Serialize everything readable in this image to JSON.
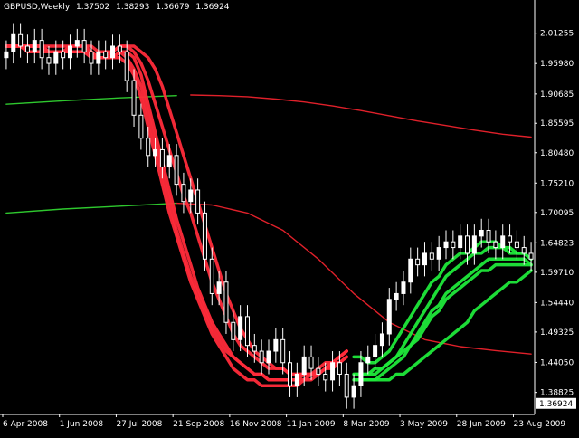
{
  "window": {
    "symbol_timeframe": "GBPUSD,Weekly",
    "ohlc": [
      "1.37502",
      "1.38293",
      "1.36679",
      "1.36924"
    ]
  },
  "colors": {
    "background": "#000000",
    "bull_candle": "#ffffff",
    "bear_candle": "#ffffff",
    "ribbon_down": "#ff2b3a",
    "ribbon_up": "#1fe83a",
    "ma_red": "#e0202a",
    "ma_green": "#2ec82e",
    "axis": "#ffffff",
    "price_marker": "#ffffff"
  },
  "chart_data": {
    "type": "line",
    "y_scale": "price",
    "ylim": [
      1.35,
      2.045
    ],
    "y_ticks": [
      "2.01255",
      "1.95980",
      "1.90685",
      "1.85595",
      "1.80480",
      "1.75210",
      "1.70095",
      "1.64823",
      "1.59710",
      "1.54440",
      "1.49325",
      "1.44050",
      "1.38825"
    ],
    "y_tick_values": [
      2.01255,
      1.9598,
      1.90685,
      1.85595,
      1.8048,
      1.7521,
      1.70095,
      1.64823,
      1.5971,
      1.5444,
      1.49325,
      1.4405,
      1.38825
    ],
    "current_price_label": "1.36924",
    "current_price": 1.36924,
    "x_ticks": [
      "6 Apr 2008",
      "1 Jun 2008",
      "27 Jul 2008",
      "21 Sep 2008",
      "16 Nov 2008",
      "11 Jan 2009",
      "8 Mar 2009",
      "3 May 2009",
      "28 Jun 2009",
      "23 Aug 2009"
    ],
    "x_tick_index": [
      0,
      8,
      16,
      24,
      32,
      40,
      48,
      56,
      64,
      72
    ],
    "candles_close": [
      1.98,
      2.01,
      1.99,
      1.98,
      2.0,
      1.97,
      1.96,
      1.98,
      1.97,
      1.99,
      2.0,
      1.98,
      1.96,
      1.98,
      1.97,
      1.99,
      1.98,
      1.93,
      1.87,
      1.83,
      1.8,
      1.81,
      1.78,
      1.8,
      1.75,
      1.72,
      1.74,
      1.7,
      1.62,
      1.56,
      1.58,
      1.51,
      1.48,
      1.52,
      1.47,
      1.46,
      1.44,
      1.46,
      1.48,
      1.44,
      1.4,
      1.42,
      1.45,
      1.43,
      1.42,
      1.41,
      1.44,
      1.42,
      1.38,
      1.4,
      1.44,
      1.45,
      1.47,
      1.49,
      1.55,
      1.56,
      1.58,
      1.62,
      1.61,
      1.63,
      1.62,
      1.64,
      1.65,
      1.64,
      1.66,
      1.63,
      1.66,
      1.67,
      1.65,
      1.64,
      1.66,
      1.65,
      1.64,
      1.63,
      1.62
    ],
    "series": [
      {
        "kind": "ribbon_red",
        "values": [
          1.99,
          1.99,
          1.99,
          1.99,
          1.99,
          1.99,
          1.98,
          1.98,
          1.98,
          1.99,
          1.99,
          1.99,
          1.98,
          1.97,
          1.97,
          1.98,
          1.99,
          1.99,
          1.98,
          1.96,
          1.93,
          1.89,
          1.85,
          1.81,
          1.77,
          1.73,
          1.7,
          1.66,
          1.62,
          1.58,
          1.55,
          1.52,
          1.49,
          1.47,
          1.46,
          1.45,
          1.44,
          1.43,
          1.43,
          1.43,
          1.42,
          1.42,
          1.42,
          1.42,
          1.42,
          1.43,
          1.44,
          1.44,
          1.45
        ]
      },
      {
        "kind": "ribbon_red",
        "values": [
          1.99,
          1.99,
          1.99,
          1.99,
          1.99,
          1.99,
          1.98,
          1.98,
          1.98,
          1.98,
          1.98,
          1.98,
          1.97,
          1.97,
          1.97,
          1.97,
          1.98,
          1.98,
          1.97,
          1.94,
          1.89,
          1.84,
          1.79,
          1.74,
          1.69,
          1.65,
          1.61,
          1.57,
          1.54,
          1.51,
          1.49,
          1.47,
          1.45,
          1.44,
          1.43,
          1.42,
          1.42,
          1.41,
          1.41,
          1.41,
          1.41,
          1.41,
          1.41,
          1.42,
          1.42,
          1.43,
          1.44,
          1.45,
          1.46
        ]
      },
      {
        "kind": "ribbon_red",
        "values": [
          1.99,
          1.99,
          1.99,
          1.98,
          1.98,
          1.98,
          1.98,
          1.98,
          1.98,
          1.98,
          1.98,
          1.98,
          1.97,
          1.97,
          1.97,
          1.97,
          1.97,
          1.96,
          1.94,
          1.9,
          1.85,
          1.8,
          1.75,
          1.7,
          1.66,
          1.62,
          1.58,
          1.55,
          1.52,
          1.49,
          1.47,
          1.45,
          1.43,
          1.42,
          1.41,
          1.41,
          1.4,
          1.4,
          1.4,
          1.4,
          1.4,
          1.4,
          1.41,
          1.41,
          1.42,
          1.43,
          1.44,
          1.45,
          1.46
        ]
      },
      {
        "kind": "ribbon_red",
        "values": [
          1.99,
          1.99,
          1.99,
          1.99,
          1.99,
          1.99,
          1.99,
          1.99,
          1.99,
          1.99,
          1.99,
          1.99,
          1.99,
          1.98,
          1.98,
          1.98,
          1.99,
          1.99,
          1.99,
          1.98,
          1.97,
          1.95,
          1.92,
          1.88,
          1.84,
          1.8,
          1.76,
          1.72,
          1.68,
          1.64,
          1.6,
          1.56,
          1.53,
          1.5,
          1.48,
          1.46,
          1.45,
          1.44,
          1.43,
          1.43,
          1.42,
          1.42,
          1.42,
          1.42,
          1.42,
          1.43,
          1.43,
          1.44,
          1.45
        ]
      },
      {
        "kind": "ribbon_red",
        "values": [
          1.99,
          1.99,
          1.99,
          1.99,
          1.99,
          1.99,
          1.98,
          1.98,
          1.98,
          1.98,
          1.98,
          1.98,
          1.98,
          1.97,
          1.97,
          1.97,
          1.98,
          1.97,
          1.95,
          1.92,
          1.87,
          1.82,
          1.77,
          1.72,
          1.67,
          1.63,
          1.59,
          1.56,
          1.53,
          1.5,
          1.48,
          1.46,
          1.45,
          1.44,
          1.43,
          1.42,
          1.42,
          1.41,
          1.41,
          1.41,
          1.41,
          1.41,
          1.42,
          1.42,
          1.43,
          1.44,
          1.44,
          1.45,
          1.46
        ]
      },
      {
        "kind": "ribbon_green",
        "values": [
          1.45,
          1.45,
          1.44,
          1.44,
          1.45,
          1.46,
          1.48,
          1.5,
          1.52,
          1.54,
          1.56,
          1.58,
          1.59,
          1.61,
          1.62,
          1.63,
          1.63,
          1.64,
          1.65,
          1.65,
          1.65,
          1.64,
          1.64,
          1.63,
          1.63,
          1.62
        ]
      },
      {
        "kind": "ribbon_green",
        "values": [
          1.42,
          1.42,
          1.42,
          1.42,
          1.43,
          1.44,
          1.45,
          1.47,
          1.49,
          1.51,
          1.53,
          1.55,
          1.57,
          1.59,
          1.6,
          1.61,
          1.62,
          1.63,
          1.63,
          1.64,
          1.64,
          1.64,
          1.63,
          1.63,
          1.63,
          1.62
        ]
      },
      {
        "kind": "ribbon_green",
        "values": [
          1.41,
          1.41,
          1.41,
          1.41,
          1.42,
          1.43,
          1.44,
          1.45,
          1.47,
          1.48,
          1.5,
          1.52,
          1.53,
          1.55,
          1.56,
          1.57,
          1.58,
          1.59,
          1.6,
          1.6,
          1.61,
          1.61,
          1.61,
          1.61,
          1.61,
          1.61
        ]
      },
      {
        "kind": "ribbon_green",
        "values": [
          1.41,
          1.41,
          1.41,
          1.41,
          1.41,
          1.41,
          1.42,
          1.42,
          1.43,
          1.44,
          1.45,
          1.46,
          1.47,
          1.48,
          1.49,
          1.5,
          1.51,
          1.53,
          1.54,
          1.55,
          1.56,
          1.57,
          1.58,
          1.58,
          1.59,
          1.6
        ]
      },
      {
        "kind": "ribbon_green",
        "values": [
          1.42,
          1.42,
          1.42,
          1.43,
          1.43,
          1.44,
          1.45,
          1.46,
          1.47,
          1.49,
          1.51,
          1.53,
          1.54,
          1.56,
          1.57,
          1.58,
          1.59,
          1.6,
          1.61,
          1.62,
          1.62,
          1.62,
          1.62,
          1.62,
          1.62,
          1.61
        ]
      },
      {
        "kind": "ma_red_upper",
        "values": [
          1.905,
          1.904,
          1.902,
          1.898,
          1.893,
          1.886,
          1.878,
          1.869,
          1.86,
          1.852,
          1.844,
          1.837,
          1.832
        ]
      },
      {
        "kind": "ma_green_upper",
        "values": [
          1.889,
          1.895,
          1.9,
          1.904
        ]
      },
      {
        "kind": "ma_green_lower",
        "values": [
          1.7,
          1.707,
          1.712,
          1.717
        ]
      },
      {
        "kind": "ma_red_lower",
        "values": [
          1.717,
          1.714,
          1.7,
          1.67,
          1.62,
          1.56,
          1.51,
          1.48,
          1.468,
          1.461,
          1.455
        ]
      }
    ]
  }
}
